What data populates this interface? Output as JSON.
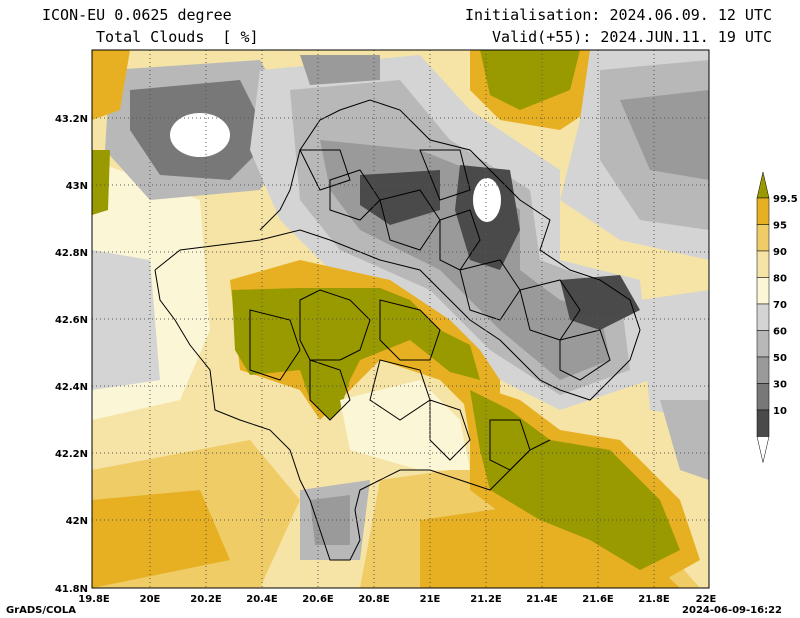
{
  "header": {
    "model": "ICON-EU 0.0625 degree",
    "field": "Total Clouds  [ %]",
    "init": "Initialisation: 2024.06.09. 12 UTC",
    "valid": "Valid(+55): 2024.JUN.11. 19 UTC"
  },
  "axes": {
    "lat_labels": [
      "43.2N",
      "43N",
      "42.8N",
      "42.6N",
      "42.4N",
      "42.2N",
      "42N",
      "41.8N"
    ],
    "lon_labels": [
      "19.8E",
      "20E",
      "20.2E",
      "20.4E",
      "20.6E",
      "20.8E",
      "21E",
      "21.2E",
      "21.4E",
      "21.6E",
      "21.8E",
      "22E"
    ]
  },
  "legend": {
    "labels": [
      "99.5",
      "95",
      "90",
      "80",
      "70",
      "60",
      "50",
      "30",
      "10"
    ],
    "colors": [
      "#999900",
      "#e6b022",
      "#f0cc66",
      "#f5e4a6",
      "#fbf6d6",
      "#d4d4d4",
      "#b8b8b8",
      "#9a9a9a",
      "#787878",
      "#4a4a4a",
      "#ffffff"
    ]
  },
  "footer": {
    "credit": "GrADS/COLA",
    "stamp": "2024-06-09-16:22"
  }
}
